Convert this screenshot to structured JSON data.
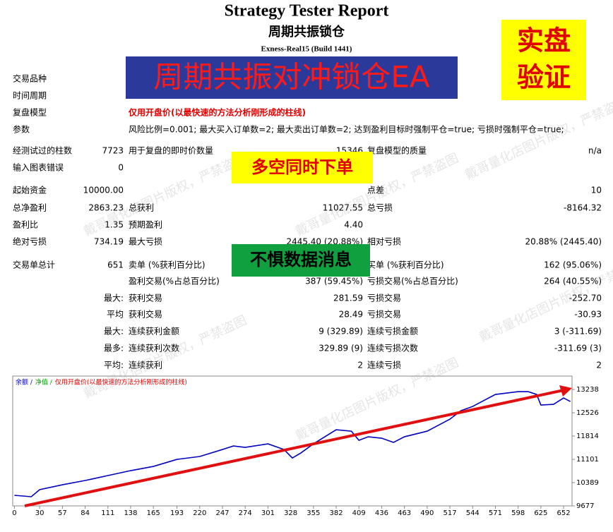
{
  "header": {
    "title": "Strategy Tester Report",
    "subtitle": "周期共振锁仓",
    "server": "Exness-Real15 (Build 1441)"
  },
  "banners": {
    "main": "周期共振对冲锁仓EA",
    "badge": [
      "实盘",
      "验证"
    ],
    "orders": "多空同时下单",
    "news": "不惧数据消息"
  },
  "watermark": "戴哥量化店图片版权，严禁盗图",
  "report": {
    "rows": [
      [
        "交易品种",
        null,
        null,
        null,
        null,
        null
      ],
      [
        "时间周期",
        null,
        null,
        null,
        null,
        null
      ],
      [
        "复盘模型",
        null,
        "仅用开盘价(以最快速的方法分析刚形成的柱线)",
        null,
        null,
        null
      ],
      [
        "参数",
        null,
        "风险比例=0.001; 最大买入订单数=2; 最大卖出订单数=2; 达到盈利目标时强制平仓=true; 亏损时强制平仓=true;",
        null,
        null,
        null
      ],
      [
        "经测试过的柱数",
        "7723",
        "用于复盘的即时价数量",
        "15346",
        "复盘模型的质量",
        "n/a"
      ],
      [
        "输入图表错误",
        "0",
        null,
        null,
        null,
        null
      ],
      [
        "起始资金",
        "10000.00",
        null,
        null,
        "点差",
        "10"
      ],
      [
        "总净盈利",
        "2863.23",
        "总获利",
        "11027.55",
        "总亏损",
        "-8164.32"
      ],
      [
        "盈利比",
        "1.35",
        "预期盈利",
        "4.40",
        null,
        null
      ],
      [
        "绝对亏损",
        "734.19",
        "最大亏损",
        "2445.40 (20.88%)",
        "相对亏损",
        "20.88% (2445.40)"
      ],
      [
        "交易单总计",
        "651",
        "卖单 (%获利百分比)",
        null,
        "买单 (%获利百分比)",
        "162 (95.06%)"
      ],
      [
        null,
        null,
        "盈利交易(%占总百分比)",
        "387 (59.45%)",
        "亏损交易(%占总百分比)",
        "264 (40.55%)"
      ],
      [
        null,
        "最大:",
        "获利交易",
        "281.59",
        "亏损交易",
        "-252.70"
      ],
      [
        null,
        "平均",
        "获利交易",
        "28.49",
        "亏损交易",
        "-30.93"
      ],
      [
        null,
        "最大:",
        "连续获利金额",
        "9 (329.89)",
        "连续亏损金额",
        "3 (-311.69)"
      ],
      [
        null,
        "最多:",
        "连续获利次数",
        "329.89 (9)",
        "连续亏损次数",
        "-311.69 (3)"
      ],
      [
        null,
        "平均:",
        "连续获利",
        "2",
        "连续亏损",
        "2"
      ]
    ]
  },
  "chart_data": {
    "type": "line",
    "legend": [
      {
        "text": "余额 /",
        "color": "#0000c0"
      },
      {
        "text": "净值 /",
        "color": "#00a000"
      },
      {
        "text": "仅用开盘价(以最快速的方法分析刚形成的柱线)",
        "color": "#e00000"
      }
    ],
    "x": [
      0,
      20,
      30,
      57,
      84,
      111,
      138,
      165,
      193,
      220,
      247,
      260,
      274,
      301,
      320,
      330,
      340,
      355,
      382,
      400,
      409,
      420,
      436,
      450,
      463,
      490,
      517,
      530,
      544,
      571,
      598,
      610,
      620,
      625,
      640,
      652,
      660
    ],
    "series": [
      {
        "name": "余额",
        "color": "#0000c0",
        "values": [
          10001,
          9958,
          10173,
          10324,
          10454,
          10605,
          10756,
          10885,
          11101,
          11188,
          11403,
          11511,
          11468,
          11576,
          11403,
          11144,
          11295,
          11576,
          12007,
          11964,
          11684,
          11792,
          11749,
          11619,
          11792,
          11964,
          12331,
          12590,
          12720,
          13087,
          13173,
          13173,
          13087,
          12763,
          12785,
          12979,
          12871
        ]
      }
    ],
    "xlim": [
      -2,
      662
    ],
    "ylim": [
      9677,
      13650
    ],
    "xticks": [
      0,
      30,
      57,
      84,
      111,
      138,
      165,
      193,
      220,
      247,
      274,
      301,
      328,
      355,
      382,
      409,
      436,
      463,
      490,
      517,
      544,
      571,
      598,
      625,
      652
    ],
    "yticks": [
      9677,
      10389,
      11101,
      11814,
      12526,
      13238
    ]
  }
}
